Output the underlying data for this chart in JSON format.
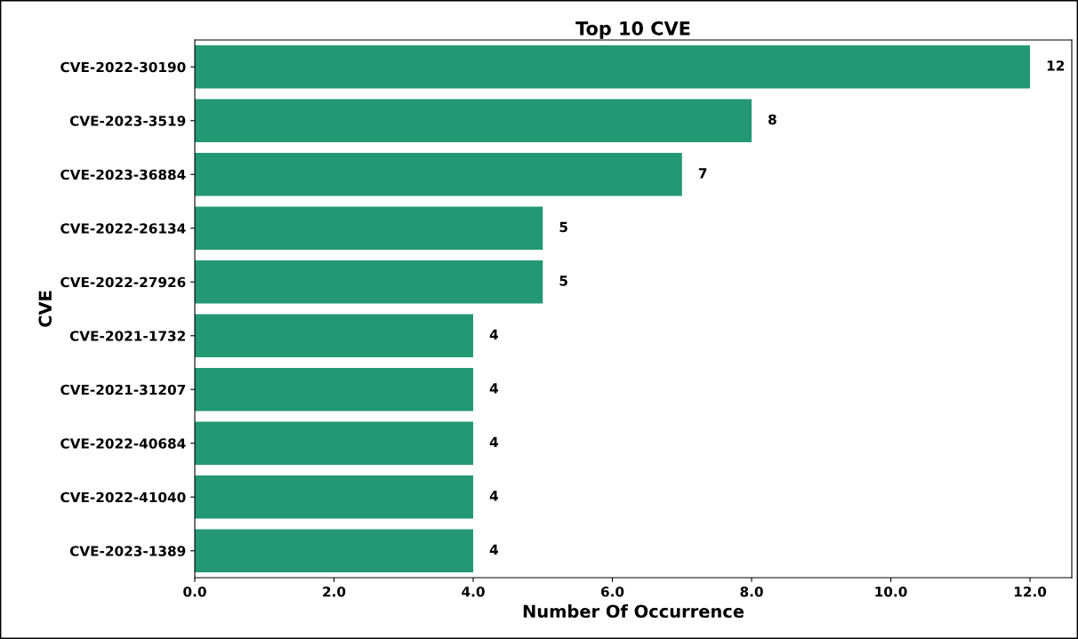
{
  "chart_data": {
    "type": "bar",
    "orientation": "horizontal",
    "title": "Top 10 CVE",
    "xlabel": "Number Of Occurrence",
    "ylabel": "CVE",
    "categories": [
      "CVE-2022-30190",
      "CVE-2023-3519",
      "CVE-2023-36884",
      "CVE-2022-26134",
      "CVE-2022-27926",
      "CVE-2021-1732",
      "CVE-2021-31207",
      "CVE-2022-40684",
      "CVE-2022-41040",
      "CVE-2023-1389"
    ],
    "values": [
      12,
      8,
      7,
      5,
      5,
      4,
      4,
      4,
      4,
      4
    ],
    "color": "#239873",
    "xlim": [
      0,
      12.6
    ],
    "xticks": [
      {
        "value": 0,
        "label": "0.0"
      },
      {
        "value": 2,
        "label": "2.0"
      },
      {
        "value": 4,
        "label": "4.0"
      },
      {
        "value": 6,
        "label": "6.0"
      },
      {
        "value": 8,
        "label": "8.0"
      },
      {
        "value": 10,
        "label": "10.0"
      },
      {
        "value": 12,
        "label": "12.0"
      }
    ],
    "data_labels": true,
    "grid": false
  }
}
